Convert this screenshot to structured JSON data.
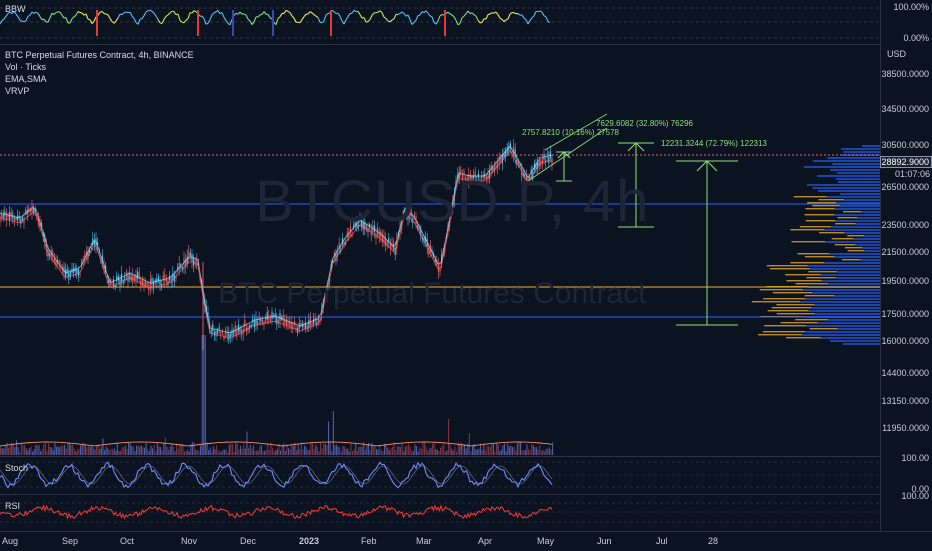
{
  "bbw": {
    "label": "BBW",
    "axis": [
      "100.00%",
      "0.00%"
    ]
  },
  "main": {
    "legend": [
      "BTC Perpetual Futures Contract, 4h, BINANCE",
      "Vol · Ticks",
      "EMA,SMA",
      "VRVP"
    ],
    "watermark_symbol": "BTCUSD.P, 4h",
    "watermark_name": "BTC Perpetual Futures Contract",
    "currency": "USD",
    "price_axis": [
      "38500.0000",
      "34500.0000",
      "30500.0000",
      "26500.0000",
      "23500.0000",
      "21500.0000",
      "19500.0000",
      "17500.0000",
      "16000.0000",
      "14400.0000",
      "13150.0000",
      "11950.0000"
    ],
    "current_price": "28892.9000",
    "countdown": "01:07:06",
    "measures": [
      "2757.8210 (10.16%) 27578",
      "7629.6082 (32.80%) 76296",
      "12231.3244 (72.79%) 122313"
    ]
  },
  "stoch": {
    "label": "Stoch",
    "axis": [
      "100.00",
      "0.00"
    ]
  },
  "rsi": {
    "label": "RSI",
    "axis": [
      "100.00"
    ]
  },
  "time_axis": [
    "Aug",
    "Sep",
    "Oct",
    "Nov",
    "Dec",
    "2023",
    "Feb",
    "Mar",
    "Apr",
    "May",
    "Jun",
    "Jul",
    "28"
  ],
  "colors": {
    "background": "#0b1220",
    "candle": "#4fc3f7",
    "blue_level": "#2962ff",
    "orange_level": "#f0b030",
    "measure": "#8fe07a",
    "rsi": "#e53935",
    "stoch": "#6f8cff"
  }
}
